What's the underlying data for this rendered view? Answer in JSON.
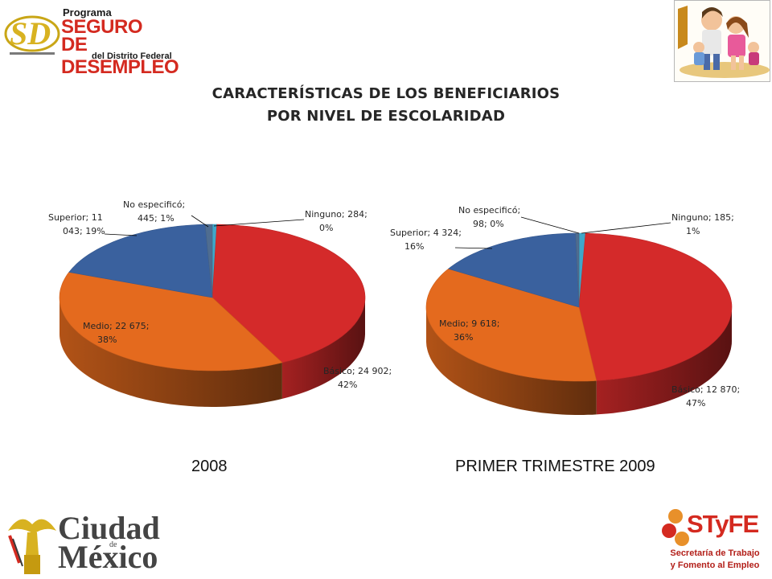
{
  "header": {
    "logo": {
      "program": "Programa",
      "line1": "SEGURO",
      "line2": "DE DESEMPLEO",
      "line3": "del Distrito Federal",
      "initials": "SD"
    }
  },
  "title": {
    "line1": "CARACTERÍSTICAS DE LOS BENEFICIARIOS",
    "line2": "POR NIVEL DE ESCOLARIDAD"
  },
  "captions": {
    "left": "2008",
    "right": "PRIMER TRIMESTRE 2009"
  },
  "footer": {
    "city_logo": {
      "word1": "Ciudad",
      "de": "de",
      "word2": "México"
    },
    "styfe_logo": {
      "acronym": "STyFE",
      "line1": "Secretaría de Trabajo",
      "line2": "y Fomento al Empleo"
    }
  },
  "colors": {
    "ninguno": "#3fa7c9",
    "basico": "#d42a2a",
    "medio": "#e46a1e",
    "superior": "#3a619e",
    "no_especifico": "#4f6d91"
  },
  "chart_data": [
    {
      "type": "pie",
      "title": "2008",
      "categories": [
        "Ninguno",
        "Básico",
        "Medio",
        "Superior",
        "No especificó"
      ],
      "values": [
        284,
        24902,
        22675,
        11043,
        445
      ],
      "percent": [
        0,
        42,
        38,
        19,
        1
      ],
      "labels": [
        [
          "Ninguno; 284;",
          "0%"
        ],
        [
          "Básico; 24 902;",
          "42%"
        ],
        [
          "Medio; 22 675;",
          "38%"
        ],
        [
          "Superior; 11",
          "043; 19%"
        ],
        [
          "No especificó;",
          "445; 1%"
        ]
      ]
    },
    {
      "type": "pie",
      "title": "PRIMER TRIMESTRE 2009",
      "categories": [
        "Ninguno",
        "Básico",
        "Medio",
        "Superior",
        "No especificó"
      ],
      "values": [
        185,
        12870,
        9618,
        4324,
        98
      ],
      "percent": [
        1,
        47,
        36,
        16,
        0
      ],
      "labels": [
        [
          "Ninguno; 185;",
          "1%"
        ],
        [
          "Básico; 12 870;",
          "47%"
        ],
        [
          "Medio; 9 618;",
          "36%"
        ],
        [
          "Superior; 4 324;",
          "16%"
        ],
        [
          "No especificó;",
          "98; 0%"
        ]
      ]
    }
  ]
}
